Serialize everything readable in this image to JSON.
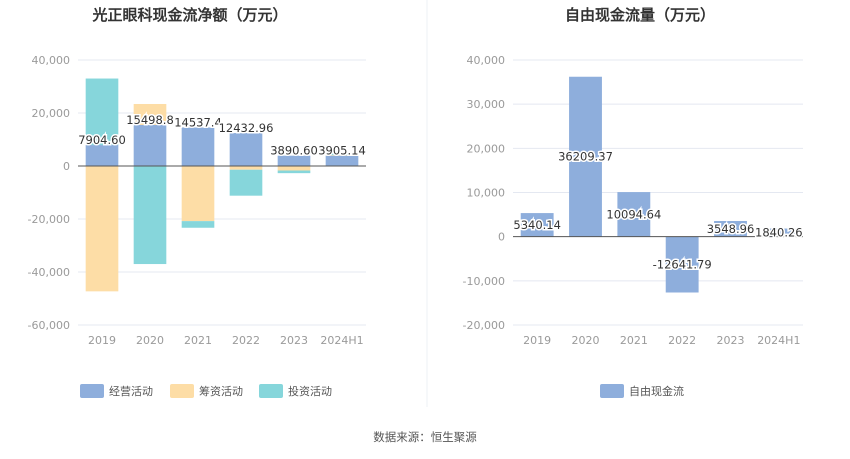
{
  "source_text": "数据来源：恒生聚源",
  "colors": {
    "operating": "#8eaedc",
    "financing": "#fddda6",
    "investing": "#86d6db",
    "freecash": "#8eaedc",
    "grid": "#e4e8f1",
    "axis": "#555555"
  },
  "chart_data": [
    {
      "type": "bar",
      "stacked": true,
      "title": "光正眼科现金流净额（万元）",
      "categories": [
        "2019",
        "2020",
        "2021",
        "2022",
        "2023",
        "2024H1"
      ],
      "ylim": [
        -60000,
        40000
      ],
      "yticks": [
        40000,
        20000,
        0,
        -20000,
        -40000,
        -60000
      ],
      "ytick_labels": [
        "40,000",
        "20,000",
        "0",
        "-20,000",
        "-40,000",
        "-60,000"
      ],
      "series": [
        {
          "name": "经营活动",
          "color_key": "operating",
          "values": [
            7904.6,
            15498.8,
            14537.4,
            12432.96,
            3890.6,
            3905.14
          ]
        },
        {
          "name": "筹资活动",
          "color_key": "financing",
          "values": [
            -47300,
            7900,
            -20800,
            -1400,
            -1700,
            200
          ]
        },
        {
          "name": "投资活动",
          "color_key": "investing",
          "values": [
            25100,
            -37000,
            -2500,
            -9800,
            -1000,
            700
          ]
        }
      ],
      "data_labels": [
        "7904.60",
        "15498.8",
        "14537.4",
        "12432.96",
        "3890.60",
        "3905.14"
      ],
      "legend": "bottom",
      "grid": true
    },
    {
      "type": "bar",
      "title": "自由现金流量（万元）",
      "categories": [
        "2019",
        "2020",
        "2021",
        "2022",
        "2023",
        "2024H1"
      ],
      "ylim": [
        -20000,
        40000
      ],
      "yticks": [
        40000,
        30000,
        20000,
        10000,
        0,
        -10000,
        -20000
      ],
      "ytick_labels": [
        "40,000",
        "30,000",
        "20,000",
        "10,000",
        "0",
        "-10,000",
        "-20,000"
      ],
      "series": [
        {
          "name": "自由现金流",
          "color_key": "freecash",
          "values": [
            5340.14,
            36209.37,
            10094.64,
            -12641.79,
            3548.96,
            1840.26
          ]
        }
      ],
      "data_labels": [
        "5340.14",
        "36209.37",
        "10094.64",
        "-12641.79",
        "3548.96",
        "1840.26"
      ],
      "legend": "bottom",
      "grid": true
    }
  ]
}
